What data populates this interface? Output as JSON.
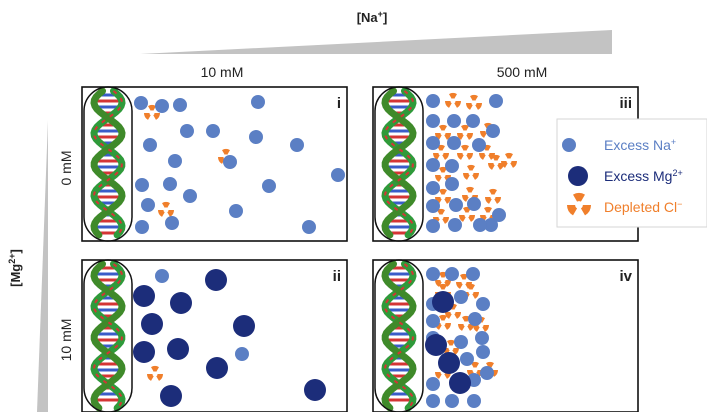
{
  "na_axis": {
    "title_main": "[Na",
    "title_sup": "+",
    "title_end": "]",
    "columns": [
      "10 mM",
      "500 mM"
    ]
  },
  "mg_axis": {
    "title_main": "[Mg",
    "title_sup": "2+",
    "title_end": "]",
    "rows": [
      "0 mM",
      "10 mM"
    ]
  },
  "panels": [
    {
      "id": "i",
      "label": "i",
      "na": "10 mM",
      "mg": "0 mM"
    },
    {
      "id": "ii",
      "label": "ii",
      "na": "10 mM",
      "mg": "10 mM"
    },
    {
      "id": "iii",
      "label": "iii",
      "na": "500 mM",
      "mg": "0 mM"
    },
    {
      "id": "iv",
      "label": "iv",
      "na": "500 mM",
      "mg": "10 mM"
    }
  ],
  "legend": [
    {
      "key": "na",
      "text": "Excess Na",
      "sup": "+",
      "color": "#5b7fc4",
      "symbol": "small-circle"
    },
    {
      "key": "mg",
      "text": "Excess Mg",
      "sup": "2+",
      "color": "#1c2d7a",
      "symbol": "large-circle"
    },
    {
      "key": "cl",
      "text": "Depleted Cl",
      "sup": "−",
      "color": "#f07f2b",
      "symbol": "trefoil"
    }
  ],
  "colors": {
    "na_ion": "#5b7fc4",
    "mg_ion": "#1c2d7a",
    "cl_hole": "#f07f2b",
    "wedge": "#c3c3c3",
    "panel_border": "#111111",
    "dna_green": "#2f9a3a",
    "dna_red": "#d43535",
    "dna_blue": "#3a5cc8"
  }
}
